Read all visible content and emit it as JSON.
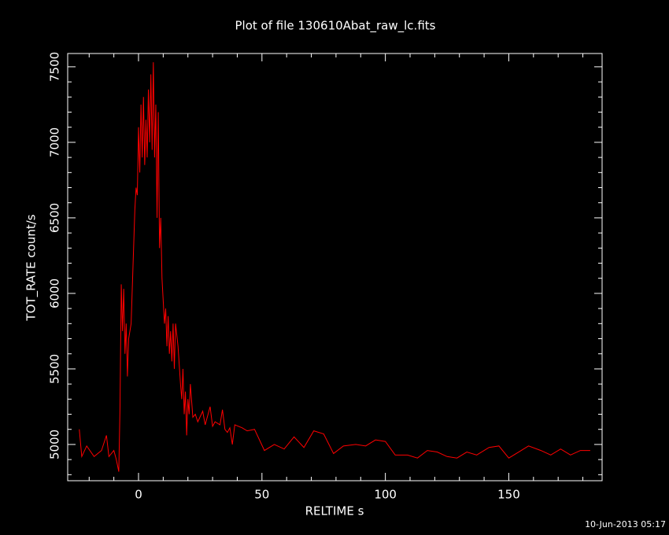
{
  "chart_data": {
    "type": "line",
    "title": "Plot of file 130610Abat_raw_lc.fits",
    "x_label": "RELTIME  s",
    "y_label": "TOT_RATE  count/s",
    "footer": "10-Jun-2013 05:17",
    "xlim": [
      -28.7,
      187.8
    ],
    "ylim": [
      4760,
      7588
    ],
    "xticks": [
      0,
      50,
      100,
      150
    ],
    "yticks": [
      5000,
      5500,
      6000,
      6500,
      7000,
      7500
    ],
    "xminorticks": [
      -20,
      -10,
      10,
      20,
      30,
      40,
      60,
      70,
      80,
      90,
      110,
      120,
      130,
      140,
      160,
      170,
      180
    ],
    "yminorticks": [
      4800,
      4900,
      5100,
      5200,
      5300,
      5400,
      5600,
      5700,
      5800,
      5900,
      6100,
      6200,
      6300,
      6400,
      6600,
      6700,
      6800,
      6900,
      7100,
      7200,
      7300,
      7400
    ],
    "x": [
      -24,
      -23,
      -21,
      -18,
      -15,
      -13,
      -12,
      -10,
      -9,
      -8,
      -7.5,
      -7,
      -6.5,
      -6,
      -5.5,
      -5,
      -4.5,
      -4,
      -3,
      -2,
      -1.5,
      -1,
      -0.5,
      0,
      0.5,
      1,
      1.5,
      2,
      2.5,
      3,
      3.5,
      4,
      4.5,
      5,
      5.5,
      6,
      6.5,
      7,
      7.5,
      8,
      8.5,
      9,
      9.5,
      10,
      10.5,
      11,
      11.5,
      12,
      12.5,
      13,
      13.5,
      14,
      14.5,
      15,
      16,
      17,
      17.5,
      18,
      18.5,
      19,
      19.5,
      20,
      20.5,
      21,
      22,
      23,
      24,
      26,
      27,
      29,
      30,
      31,
      33,
      34,
      35,
      36,
      37,
      38,
      39,
      42,
      44,
      47,
      51,
      55,
      59,
      63,
      67,
      71,
      75,
      79,
      83,
      88,
      92,
      96,
      100,
      104,
      109,
      113,
      117,
      121,
      125,
      129,
      133,
      137,
      142,
      146,
      150,
      154,
      158,
      163,
      167,
      171,
      175,
      179,
      183
    ],
    "series": [
      {
        "name": "TOT_RATE",
        "color": "#ff0000",
        "values": [
          5100,
          4920,
          4990,
          4920,
          4960,
          5060,
          4920,
          4960,
          4900,
          4820,
          5250,
          6060,
          5750,
          6030,
          5600,
          5800,
          5450,
          5700,
          5800,
          6300,
          6550,
          6700,
          6650,
          7100,
          6800,
          7250,
          6900,
          7300,
          6850,
          7150,
          6900,
          7350,
          7000,
          7450,
          6950,
          7530,
          6900,
          7250,
          6500,
          7200,
          6300,
          6500,
          6100,
          5950,
          5800,
          5900,
          5650,
          5850,
          5600,
          5750,
          5550,
          5800,
          5500,
          5800,
          5650,
          5400,
          5300,
          5500,
          5200,
          5350,
          5060,
          5300,
          5200,
          5400,
          5180,
          5200,
          5150,
          5220,
          5130,
          5250,
          5120,
          5150,
          5130,
          5230,
          5100,
          5080,
          5110,
          5000,
          5130,
          5110,
          5090,
          5100,
          4960,
          5000,
          4970,
          5050,
          4980,
          5090,
          5070,
          4940,
          4990,
          5000,
          4990,
          5030,
          5020,
          4930,
          4930,
          4910,
          4960,
          4950,
          4920,
          4910,
          4950,
          4930,
          4980,
          4990,
          4910,
          4950,
          4990,
          4960,
          4930,
          4970,
          4930,
          4960,
          4960
        ]
      }
    ]
  }
}
